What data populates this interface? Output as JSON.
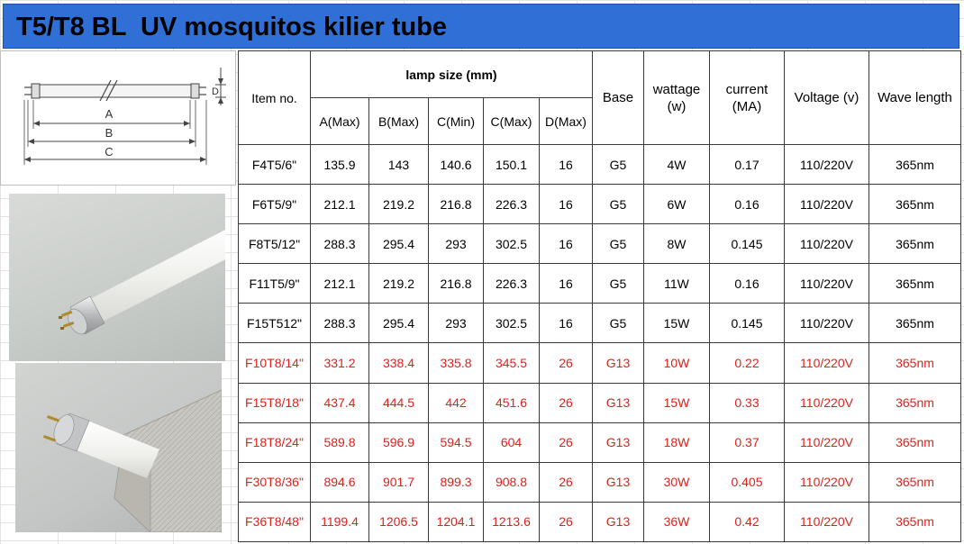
{
  "title": "T5/T8 BL  UV mosquitos kilier tube",
  "diagram": {
    "labels": {
      "a": "A",
      "b": "B",
      "c": "C",
      "d": "D"
    }
  },
  "table": {
    "headers": {
      "item_no": "Item no.",
      "lamp_size": "lamp size (mm)",
      "a_max": "A(Max)",
      "b_max": "B(Max)",
      "c_min": "C(Min)",
      "c_max": "C(Max)",
      "d_max": "D(Max)",
      "base": "Base",
      "wattage": "wattage (w)",
      "current": "current (MA)",
      "voltage": "Voltage (v)",
      "wave_length": "Wave length"
    },
    "rows": [
      {
        "item": "F4T5/6\"",
        "a": "135.9",
        "b": "143",
        "c_min": "140.6",
        "c_max": "150.1",
        "d": "16",
        "base": "G5",
        "watt": "4W",
        "current": "0.17",
        "voltage": "110/220V",
        "wave": "365nm",
        "highlight": false
      },
      {
        "item": "F6T5/9\"",
        "a": "212.1",
        "b": "219.2",
        "c_min": "216.8",
        "c_max": "226.3",
        "d": "16",
        "base": "G5",
        "watt": "6W",
        "current": "0.16",
        "voltage": "110/220V",
        "wave": "365nm",
        "highlight": false
      },
      {
        "item": "F8T5/12\"",
        "a": "288.3",
        "b": "295.4",
        "c_min": "293",
        "c_max": "302.5",
        "d": "16",
        "base": "G5",
        "watt": "8W",
        "current": "0.145",
        "voltage": "110/220V",
        "wave": "365nm",
        "highlight": false
      },
      {
        "item": "F11T5/9\"",
        "a": "212.1",
        "b": "219.2",
        "c_min": "216.8",
        "c_max": "226.3",
        "d": "16",
        "base": "G5",
        "watt": "11W",
        "current": "0.16",
        "voltage": "110/220V",
        "wave": "365nm",
        "highlight": false
      },
      {
        "item": "F15T512\"",
        "a": "288.3",
        "b": "295.4",
        "c_min": "293",
        "c_max": "302.5",
        "d": "16",
        "base": "G5",
        "watt": "15W",
        "current": "0.145",
        "voltage": "110/220V",
        "wave": "365nm",
        "highlight": false
      },
      {
        "item": "F10T8/14\"",
        "a": "331.2",
        "b": "338.4",
        "c_min": "335.8",
        "c_max": "345.5",
        "d": "26",
        "base": "G13",
        "watt": "10W",
        "current": "0.22",
        "voltage": "110/220V",
        "wave": "365nm",
        "highlight": true
      },
      {
        "item": "F15T8/18\"",
        "a": "437.4",
        "b": "444.5",
        "c_min": "442",
        "c_max": "451.6",
        "d": "26",
        "base": "G13",
        "watt": "15W",
        "current": "0.33",
        "voltage": "110/220V",
        "wave": "365nm",
        "highlight": true
      },
      {
        "item": "F18T8/24\"",
        "a": "589.8",
        "b": "596.9",
        "c_min": "594.5",
        "c_max": "604",
        "d": "26",
        "base": "G13",
        "watt": "18W",
        "current": "0.37",
        "voltage": "110/220V",
        "wave": "365nm",
        "highlight": true
      },
      {
        "item": "F30T8/36\"",
        "a": "894.6",
        "b": "901.7",
        "c_min": "899.3",
        "c_max": "908.8",
        "d": "26",
        "base": "G13",
        "watt": "30W",
        "current": "0.405",
        "voltage": "110/220V",
        "wave": "365nm",
        "highlight": true
      },
      {
        "item": "F36T8/48\"",
        "a": "1199.4",
        "b": "1206.5",
        "c_min": "1204.1",
        "c_max": "1213.6",
        "d": "26",
        "base": "G13",
        "watt": "36W",
        "current": "0.42",
        "voltage": "110/220V",
        "wave": "365nm",
        "highlight": true
      }
    ]
  },
  "colors": {
    "title_bar": "#2f6fd6",
    "highlight_text": "#e0201c",
    "border": "#3a3a3a"
  }
}
